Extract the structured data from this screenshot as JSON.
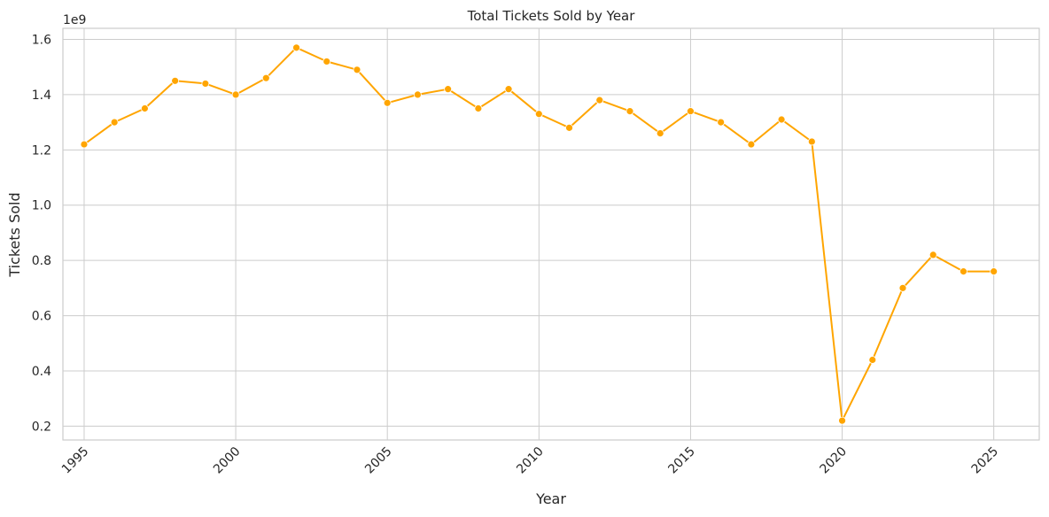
{
  "chart_data": {
    "type": "line",
    "title": "Total Tickets Sold by Year",
    "xlabel": "Year",
    "ylabel": "Tickets Sold",
    "y_offset_label": "1e9",
    "xlim": [
      1994.3,
      2026.5
    ],
    "ylim": [
      0.15,
      1.64
    ],
    "xticks": [
      1995,
      2000,
      2005,
      2010,
      2015,
      2020,
      2025
    ],
    "yticks": [
      0.2,
      0.4,
      0.6,
      0.8,
      1.0,
      1.2,
      1.4,
      1.6
    ],
    "ytick_labels": [
      "0.2",
      "0.4",
      "0.6",
      "0.8",
      "1.0",
      "1.2",
      "1.4",
      "1.6"
    ],
    "grid": true,
    "x_tick_rotation": -45,
    "series": [
      {
        "color": "#ffa500",
        "marker": "circle",
        "x": [
          1995,
          1996,
          1997,
          1998,
          1999,
          2000,
          2001,
          2002,
          2003,
          2004,
          2005,
          2006,
          2007,
          2008,
          2009,
          2010,
          2011,
          2012,
          2013,
          2014,
          2015,
          2016,
          2017,
          2018,
          2019,
          2020,
          2021,
          2022,
          2023,
          2024,
          2025
        ],
        "y": [
          1.22,
          1.3,
          1.35,
          1.45,
          1.44,
          1.4,
          1.46,
          1.57,
          1.52,
          1.49,
          1.37,
          1.4,
          1.42,
          1.35,
          1.42,
          1.33,
          1.28,
          1.38,
          1.34,
          1.26,
          1.34,
          1.3,
          1.22,
          1.31,
          1.23,
          0.22,
          0.44,
          0.7,
          0.82,
          0.76,
          0.76
        ]
      }
    ]
  }
}
